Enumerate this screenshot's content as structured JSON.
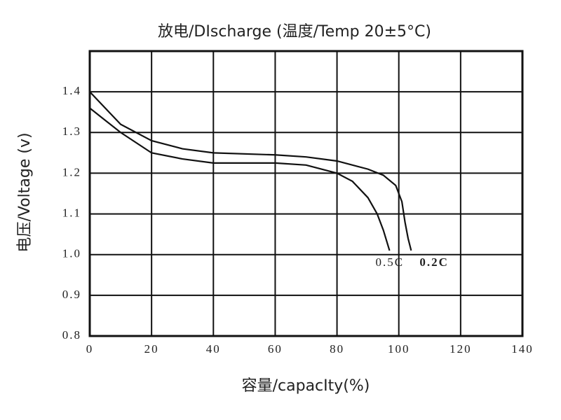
{
  "chart_data": {
    "type": "line",
    "title": "放电/DIscharge (温度/Temp 20±5°C)",
    "x_label": "容量/capacIty(%)",
    "y_label": "电压/Voltage (v)",
    "xlim": [
      0,
      140
    ],
    "xticks": [
      0,
      20,
      40,
      60,
      80,
      100,
      120,
      140
    ],
    "ylim": [
      0.8,
      1.5
    ],
    "yticks": [
      0.8,
      0.9,
      {
        "value": 1,
        "label": "1.0"
      },
      1.1,
      1.2,
      1.3,
      1.4
    ],
    "grid": true,
    "series": [
      {
        "name": "0.5C",
        "color": "#111111",
        "x": [
          0,
          5,
          10,
          20,
          30,
          40,
          60,
          70,
          80,
          85,
          90,
          93,
          95,
          97
        ],
        "values": [
          1.36,
          1.33,
          1.3,
          1.25,
          1.235,
          1.225,
          1.225,
          1.22,
          1.2,
          1.18,
          1.14,
          1.1,
          1.06,
          1.01
        ]
      },
      {
        "name": "0.2C",
        "color": "#111111",
        "x": [
          0,
          5,
          10,
          20,
          30,
          40,
          60,
          70,
          80,
          90,
          95,
          99,
          101,
          102,
          103,
          104
        ],
        "values": [
          1.4,
          1.36,
          1.32,
          1.28,
          1.26,
          1.25,
          1.245,
          1.24,
          1.23,
          1.21,
          1.195,
          1.17,
          1.13,
          1.08,
          1.04,
          1.01
        ]
      }
    ]
  }
}
